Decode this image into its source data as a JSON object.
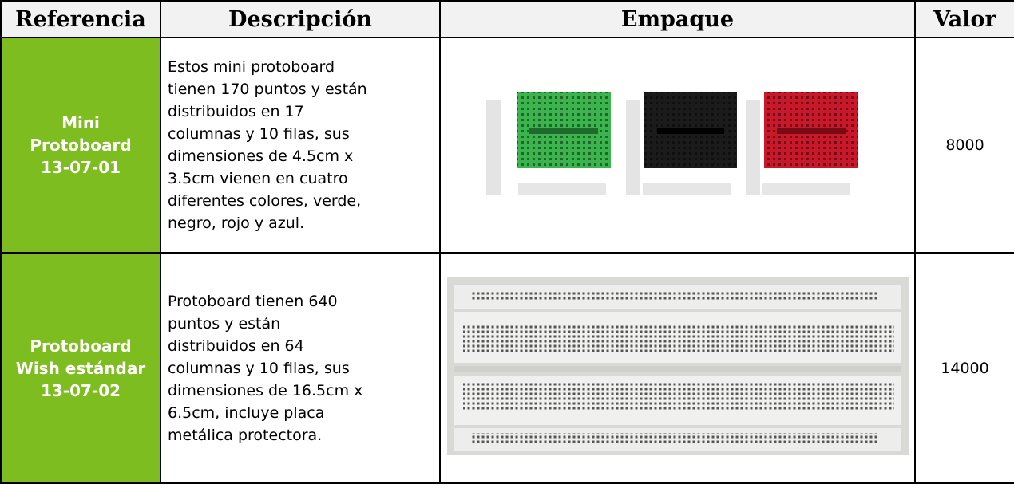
{
  "table": {
    "header": [
      "Referencia",
      "Descripción",
      "Empaque",
      "Valor"
    ],
    "rows": [
      {
        "reference": [
          "Mini",
          "Protoboard",
          "13-07-01"
        ],
        "description": [
          "Estos mini protoboard",
          "tienen 170 puntos y están",
          "distribuidos en 17",
          "columnas y 10 filas, sus",
          "dimensiones de 4.5cm x",
          "3.5cm vienen en cuatro",
          "diferentes colores, verde,",
          "negro, rojo y azul."
        ],
        "value": "8000"
      },
      {
        "reference": [
          "Protoboard",
          "Wish estándar",
          "13-07-02"
        ],
        "description": [
          "Protoboard tienen 640",
          "puntos y están",
          "distribuidos en 64",
          "columnas y 10 filas, sus",
          "dimensiones de 16.5cm x",
          "6.5cm, incluye placa",
          "metálica protectora."
        ],
        "value": "14000"
      }
    ]
  }
}
